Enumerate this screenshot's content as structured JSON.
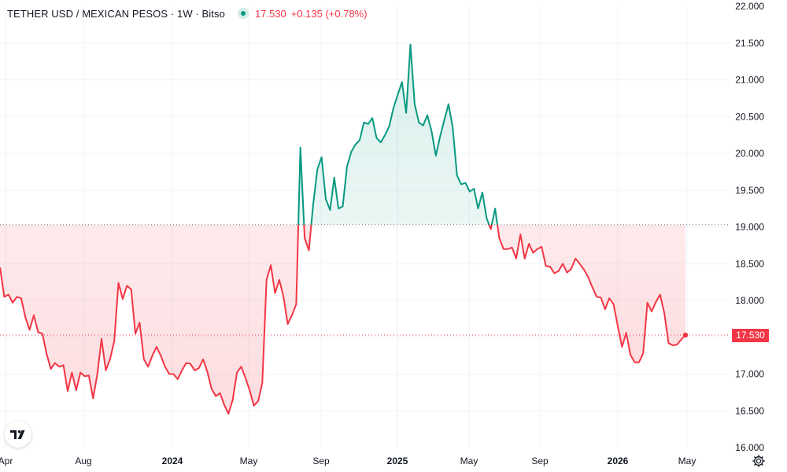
{
  "header": {
    "title": "TETHER USD / MEXICAN PESOS · 1W · Bitso",
    "price": "17.530",
    "change": "+0.135 (+0.78%)"
  },
  "colors": {
    "up": "#089981",
    "down": "#f23645",
    "up_fill": "rgba(8,153,129,0.13)",
    "down_fill": "rgba(242,54,69,0.13)",
    "grid": "#f0f3fa",
    "axis_text": "#131722"
  },
  "icons": {
    "logo": "tradingview-logo-icon",
    "settings": "gear-icon"
  },
  "chart_data": {
    "type": "area",
    "baseline": 19.03,
    "last_price": 17.53,
    "last_price_label": "17.530",
    "ylim": [
      16.0,
      22.0
    ],
    "y_ticks": [
      "16.000",
      "16.500",
      "17.000",
      "17.500",
      "18.000",
      "18.500",
      "19.000",
      "19.500",
      "20.000",
      "20.500",
      "21.000",
      "21.500",
      "22.000"
    ],
    "x_ticks": [
      "Apr",
      "Aug",
      "2024",
      "May",
      "Sep",
      "2025",
      "May",
      "Sep",
      "2026",
      "May"
    ],
    "x_ticks_bold": [
      false,
      false,
      true,
      false,
      false,
      true,
      false,
      false,
      true,
      false
    ],
    "grid": true,
    "series": [
      {
        "points": [
          [
            0,
            18.45
          ],
          [
            5,
            18.05
          ],
          [
            10,
            18.08
          ],
          [
            15,
            17.97
          ],
          [
            20,
            18.05
          ],
          [
            25,
            18.03
          ],
          [
            30,
            17.77
          ],
          [
            35,
            17.6
          ],
          [
            40,
            17.8
          ],
          [
            45,
            17.57
          ],
          [
            50,
            17.55
          ],
          [
            55,
            17.28
          ],
          [
            60,
            17.07
          ],
          [
            65,
            17.15
          ],
          [
            70,
            17.1
          ],
          [
            75,
            17.12
          ],
          [
            80,
            16.77
          ],
          [
            85,
            17.02
          ],
          [
            90,
            16.78
          ],
          [
            95,
            17.02
          ],
          [
            100,
            16.97
          ],
          [
            105,
            16.98
          ],
          [
            110,
            16.67
          ],
          [
            115,
            17.0
          ],
          [
            120,
            17.48
          ],
          [
            125,
            17.05
          ],
          [
            130,
            17.2
          ],
          [
            135,
            17.45
          ],
          [
            140,
            18.24
          ],
          [
            145,
            18.02
          ],
          [
            150,
            18.2
          ],
          [
            155,
            18.15
          ],
          [
            160,
            17.55
          ],
          [
            165,
            17.7
          ],
          [
            170,
            17.2
          ],
          [
            175,
            17.1
          ],
          [
            180,
            17.25
          ],
          [
            185,
            17.37
          ],
          [
            190,
            17.25
          ],
          [
            195,
            17.1
          ],
          [
            200,
            17.0
          ],
          [
            205,
            17.0
          ],
          [
            210,
            16.93
          ],
          [
            215,
            17.05
          ],
          [
            220,
            17.15
          ],
          [
            225,
            17.14
          ],
          [
            230,
            17.05
          ],
          [
            235,
            17.08
          ],
          [
            240,
            17.2
          ],
          [
            245,
            17.03
          ],
          [
            250,
            16.8
          ],
          [
            255,
            16.7
          ],
          [
            260,
            16.74
          ],
          [
            265,
            16.58
          ],
          [
            270,
            16.46
          ],
          [
            275,
            16.65
          ],
          [
            280,
            17.02
          ],
          [
            285,
            17.1
          ],
          [
            290,
            16.95
          ],
          [
            295,
            16.78
          ],
          [
            300,
            16.57
          ],
          [
            305,
            16.63
          ],
          [
            310,
            16.88
          ],
          [
            315,
            18.28
          ],
          [
            320,
            18.48
          ],
          [
            325,
            18.1
          ],
          [
            330,
            18.28
          ],
          [
            335,
            18.05
          ],
          [
            340,
            17.68
          ],
          [
            345,
            17.8
          ],
          [
            350,
            17.95
          ],
          [
            355,
            20.08
          ],
          [
            360,
            18.85
          ],
          [
            365,
            18.68
          ],
          [
            370,
            19.3
          ],
          [
            375,
            19.78
          ],
          [
            380,
            19.95
          ],
          [
            385,
            19.38
          ],
          [
            390,
            19.23
          ],
          [
            395,
            19.67
          ],
          [
            400,
            19.25
          ],
          [
            405,
            19.28
          ],
          [
            410,
            19.82
          ],
          [
            415,
            20.02
          ],
          [
            420,
            20.12
          ],
          [
            425,
            20.18
          ],
          [
            430,
            20.42
          ],
          [
            435,
            20.4
          ],
          [
            440,
            20.48
          ],
          [
            445,
            20.21
          ],
          [
            450,
            20.15
          ],
          [
            455,
            20.25
          ],
          [
            460,
            20.37
          ],
          [
            465,
            20.62
          ],
          [
            470,
            20.8
          ],
          [
            475,
            20.97
          ],
          [
            480,
            20.55
          ],
          [
            485,
            21.48
          ],
          [
            490,
            20.67
          ],
          [
            495,
            20.42
          ],
          [
            500,
            20.38
          ],
          [
            505,
            20.52
          ],
          [
            510,
            20.3
          ],
          [
            515,
            19.97
          ],
          [
            520,
            20.23
          ],
          [
            525,
            20.45
          ],
          [
            530,
            20.67
          ],
          [
            535,
            20.35
          ],
          [
            540,
            19.7
          ],
          [
            545,
            19.58
          ],
          [
            550,
            19.6
          ],
          [
            555,
            19.48
          ],
          [
            560,
            19.52
          ],
          [
            565,
            19.25
          ],
          [
            570,
            19.47
          ],
          [
            575,
            19.12
          ],
          [
            580,
            18.97
          ],
          [
            585,
            19.25
          ],
          [
            590,
            18.85
          ],
          [
            595,
            18.7
          ],
          [
            600,
            18.7
          ],
          [
            605,
            18.72
          ],
          [
            610,
            18.57
          ],
          [
            615,
            18.9
          ],
          [
            620,
            18.57
          ],
          [
            625,
            18.77
          ],
          [
            630,
            18.65
          ],
          [
            635,
            18.7
          ],
          [
            640,
            18.73
          ],
          [
            645,
            18.47
          ],
          [
            650,
            18.46
          ],
          [
            655,
            18.37
          ],
          [
            660,
            18.4
          ],
          [
            665,
            18.5
          ],
          [
            670,
            18.38
          ],
          [
            675,
            18.43
          ],
          [
            680,
            18.57
          ],
          [
            685,
            18.5
          ],
          [
            690,
            18.42
          ],
          [
            695,
            18.32
          ],
          [
            700,
            18.18
          ],
          [
            705,
            18.05
          ],
          [
            710,
            18.04
          ],
          [
            715,
            17.88
          ],
          [
            720,
            18.03
          ],
          [
            725,
            17.95
          ],
          [
            730,
            17.65
          ],
          [
            735,
            17.37
          ],
          [
            740,
            17.56
          ],
          [
            745,
            17.26
          ],
          [
            750,
            17.16
          ],
          [
            755,
            17.16
          ],
          [
            760,
            17.28
          ],
          [
            765,
            17.97
          ],
          [
            770,
            17.85
          ],
          [
            775,
            17.98
          ],
          [
            780,
            18.08
          ],
          [
            785,
            17.83
          ],
          [
            790,
            17.42
          ],
          [
            795,
            17.39
          ],
          [
            800,
            17.4
          ],
          [
            805,
            17.47
          ],
          [
            810,
            17.53
          ]
        ]
      }
    ]
  }
}
